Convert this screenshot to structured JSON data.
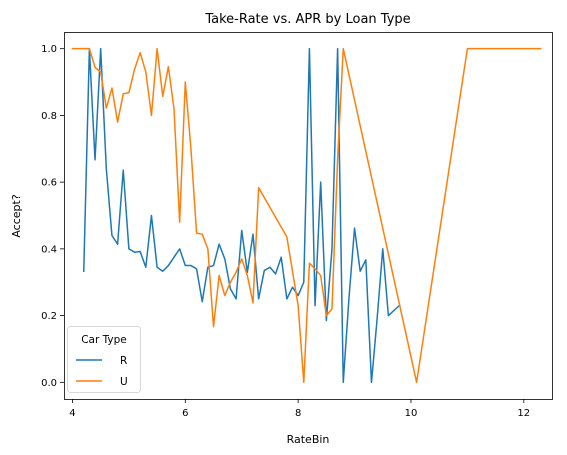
{
  "chart_data": {
    "type": "line",
    "title": "Take-Rate vs. APR by Loan Type",
    "xlabel": "RateBin",
    "ylabel": "Accept?",
    "xlim": [
      3.85,
      12.5
    ],
    "ylim": [
      -0.05,
      1.05
    ],
    "xticks": [
      4,
      6,
      8,
      10,
      12
    ],
    "yticks": [
      0.0,
      0.2,
      0.4,
      0.6,
      0.8,
      1.0
    ],
    "xtick_labels": [
      "4",
      "6",
      "8",
      "10",
      "12"
    ],
    "ytick_labels": [
      "0.0",
      "0.2",
      "0.4",
      "0.6",
      "0.8",
      "1.0"
    ],
    "grid": false,
    "legend": {
      "title": "Car  Type",
      "position": "lower-left"
    },
    "series": [
      {
        "name": "R",
        "color": "#1f77b4",
        "x": [
          4.2,
          4.3,
          4.4,
          4.5,
          4.6,
          4.7,
          4.8,
          4.9,
          5.0,
          5.1,
          5.2,
          5.3,
          5.4,
          5.5,
          5.6,
          5.7,
          5.8,
          5.9,
          6.0,
          6.1,
          6.2,
          6.3,
          6.4,
          6.5,
          6.6,
          6.7,
          6.8,
          6.9,
          7.0,
          7.1,
          7.2,
          7.3,
          7.4,
          7.5,
          7.6,
          7.7,
          7.8,
          7.9,
          8.0,
          8.1,
          8.2,
          8.3,
          8.4,
          8.5,
          8.6,
          8.7,
          8.8,
          8.9,
          9.0,
          9.1,
          9.2,
          9.3,
          9.4,
          9.5,
          9.6,
          9.8
        ],
        "y": [
          0.333,
          1.0,
          0.667,
          1.0,
          0.64,
          0.44,
          0.414,
          0.636,
          0.4,
          0.39,
          0.392,
          0.345,
          0.5,
          0.345,
          0.333,
          0.35,
          0.375,
          0.4,
          0.35,
          0.35,
          0.34,
          0.242,
          0.345,
          0.35,
          0.414,
          0.37,
          0.28,
          0.25,
          0.455,
          0.33,
          0.444,
          0.25,
          0.335,
          0.345,
          0.325,
          0.375,
          0.25,
          0.285,
          0.26,
          0.3,
          1.0,
          0.23,
          0.6,
          0.185,
          0.4,
          1.0,
          0.0,
          0.25,
          0.462,
          0.333,
          0.367,
          0.0,
          0.19,
          0.4,
          0.2,
          0.231
        ]
      },
      {
        "name": "U",
        "color": "#ff7f0e",
        "x": [
          4.0,
          4.3,
          4.4,
          4.5,
          4.6,
          4.7,
          4.8,
          4.9,
          5.0,
          5.1,
          5.2,
          5.3,
          5.4,
          5.5,
          5.6,
          5.7,
          5.8,
          5.9,
          6.0,
          6.1,
          6.2,
          6.3,
          6.4,
          6.5,
          6.6,
          6.7,
          6.8,
          6.9,
          7.0,
          7.1,
          7.2,
          7.3,
          7.8,
          7.9,
          8.0,
          8.1,
          8.2,
          8.3,
          8.4,
          8.5,
          8.6,
          8.7,
          8.8,
          10.1,
          11.0,
          12.3
        ],
        "y": [
          1.0,
          1.0,
          0.944,
          0.93,
          0.822,
          0.882,
          0.78,
          0.865,
          0.868,
          0.938,
          0.988,
          0.93,
          0.8,
          1.0,
          0.857,
          0.946,
          0.82,
          0.48,
          0.9,
          0.7,
          0.447,
          0.444,
          0.4,
          0.167,
          0.32,
          0.26,
          0.3,
          0.33,
          0.37,
          0.32,
          0.238,
          0.583,
          0.436,
          0.333,
          0.23,
          0.0,
          0.357,
          0.34,
          0.32,
          0.2,
          0.22,
          0.67,
          1.0,
          0.0,
          1.0,
          1.0
        ]
      }
    ]
  }
}
